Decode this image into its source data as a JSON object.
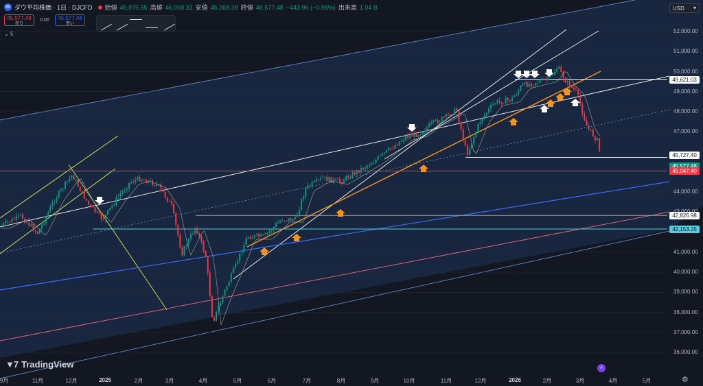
{
  "header": {
    "title": "ダウ平均株価 · 1日 · DJCFD",
    "icon_text": "30",
    "open_label": "始値",
    "open": "45,975.65",
    "high_label": "高値",
    "high": "46,068.31",
    "low_label": "安値",
    "low": "45,369.39",
    "close_label": "終値",
    "close": "45,577.48",
    "change": "−443.96 (−0.96%)",
    "volume_label": "出来高",
    "volume": "1.04 B"
  },
  "trade": {
    "sell_price": "45,577.48",
    "sell_label": "売り",
    "spread": "0.00",
    "buy_price": "45,577.48",
    "buy_label": "買い"
  },
  "indicator_count": "5",
  "currency": "USD",
  "logo_text": "TradingView",
  "colors": {
    "bg": "#131722",
    "up": "#089981",
    "down": "#f23645",
    "orange": "#f7931a",
    "white": "#ffffff",
    "channel": "#2962ff"
  },
  "chart_data": {
    "type": "candlestick",
    "y_ticks": [
      "52,000.00",
      "51,000.00",
      "50,000.00",
      "49,000.00",
      "48,000.00",
      "47,000.00",
      "45,000.00",
      "44,000.00",
      "43,000.00",
      "41,000.00",
      "40,000.00",
      "39,000.00",
      "38,000.00",
      "37,000.00",
      "36,000.00"
    ],
    "y_tick_values": [
      52000,
      51000,
      50000,
      49000,
      48000,
      47000,
      45000,
      44000,
      43000,
      41000,
      40000,
      39000,
      38000,
      37000,
      36000
    ],
    "ylim": [
      35500,
      53500
    ],
    "x_labels": [
      "9月",
      "11月",
      "12月",
      "2025",
      "2月",
      "3月",
      "4月",
      "5月",
      "6月",
      "7月",
      "8月",
      "9月",
      "10月",
      "11月",
      "12月",
      "2026",
      "2月",
      "3月",
      "4月",
      "5月"
    ],
    "price_levels": [
      {
        "label": "49,621.03",
        "value": 49621.03,
        "style": "white"
      },
      {
        "label": "45,727.40",
        "value": 45727.4,
        "style": "white"
      },
      {
        "label": "45,577.48",
        "value": 45577.48,
        "style": "last"
      },
      {
        "label": "45,047.40",
        "value": 45047.4,
        "style": "red"
      },
      {
        "label": "42,826.98",
        "value": 42826.98,
        "style": "gray"
      },
      {
        "label": "42,153.25",
        "value": 42153.25,
        "style": "cyan"
      }
    ],
    "last_close": 45577.48
  }
}
